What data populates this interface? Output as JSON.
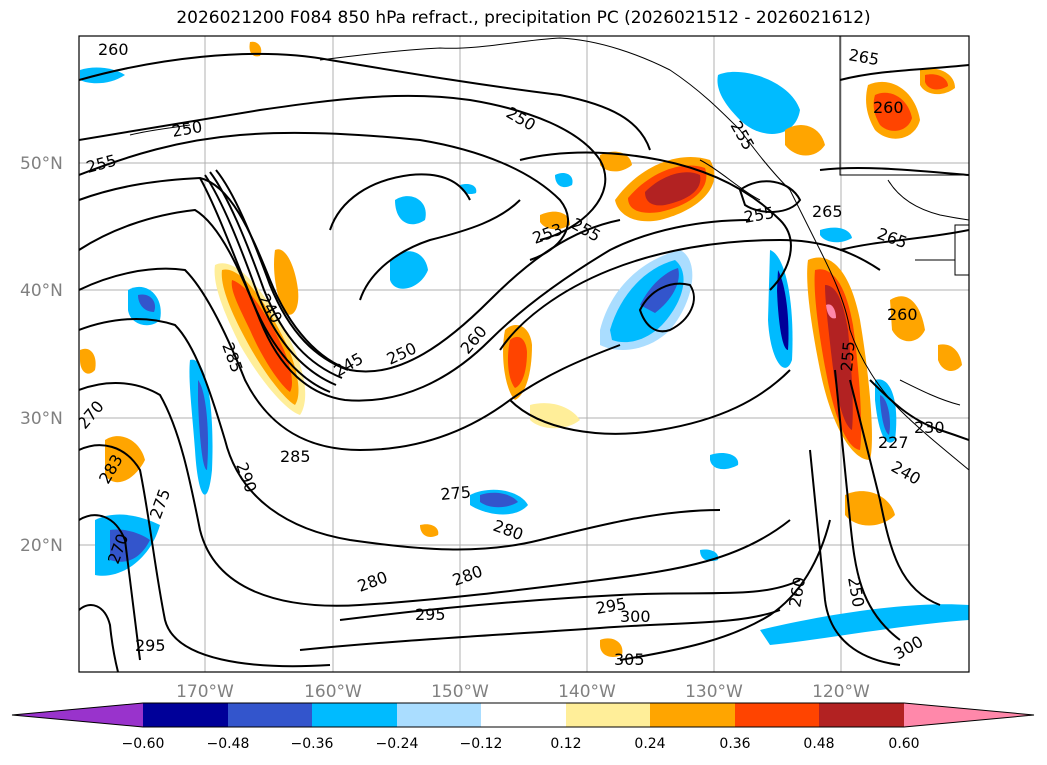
{
  "title": "2026021200 F084 850 hPa refract., precipitation PC (2026021512 - 2026021612)",
  "lat_labels": [
    "50°N",
    "40°N",
    "30°N",
    "20°N"
  ],
  "lon_labels": [
    "170°W",
    "160°W",
    "150°W",
    "140°W",
    "130°W",
    "120°W"
  ],
  "contour_labels": [
    "260",
    "250",
    "255",
    "250",
    "255",
    "253",
    "255",
    "265",
    "260",
    "255",
    "265",
    "265",
    "240",
    "245",
    "250",
    "260",
    "285",
    "270",
    "283",
    "275",
    "285",
    "290",
    "275",
    "280",
    "270",
    "280",
    "280",
    "295",
    "295",
    "300",
    "305",
    "295",
    "255",
    "250",
    "260",
    "300",
    "260",
    "230",
    "240",
    "227"
  ],
  "colorbar": {
    "colors": [
      "#9933cc",
      "#000099",
      "#3355cc",
      "#00bbff",
      "#aaddff",
      "#ffffff",
      "#ffee99",
      "#ffa500",
      "#ff4400",
      "#b22222",
      "#ff88aa"
    ],
    "ticks": [
      "−0.60",
      "−0.48",
      "−0.36",
      "−0.24",
      "−0.12",
      "0.12",
      "0.24",
      "0.36",
      "0.48",
      "0.60"
    ]
  }
}
